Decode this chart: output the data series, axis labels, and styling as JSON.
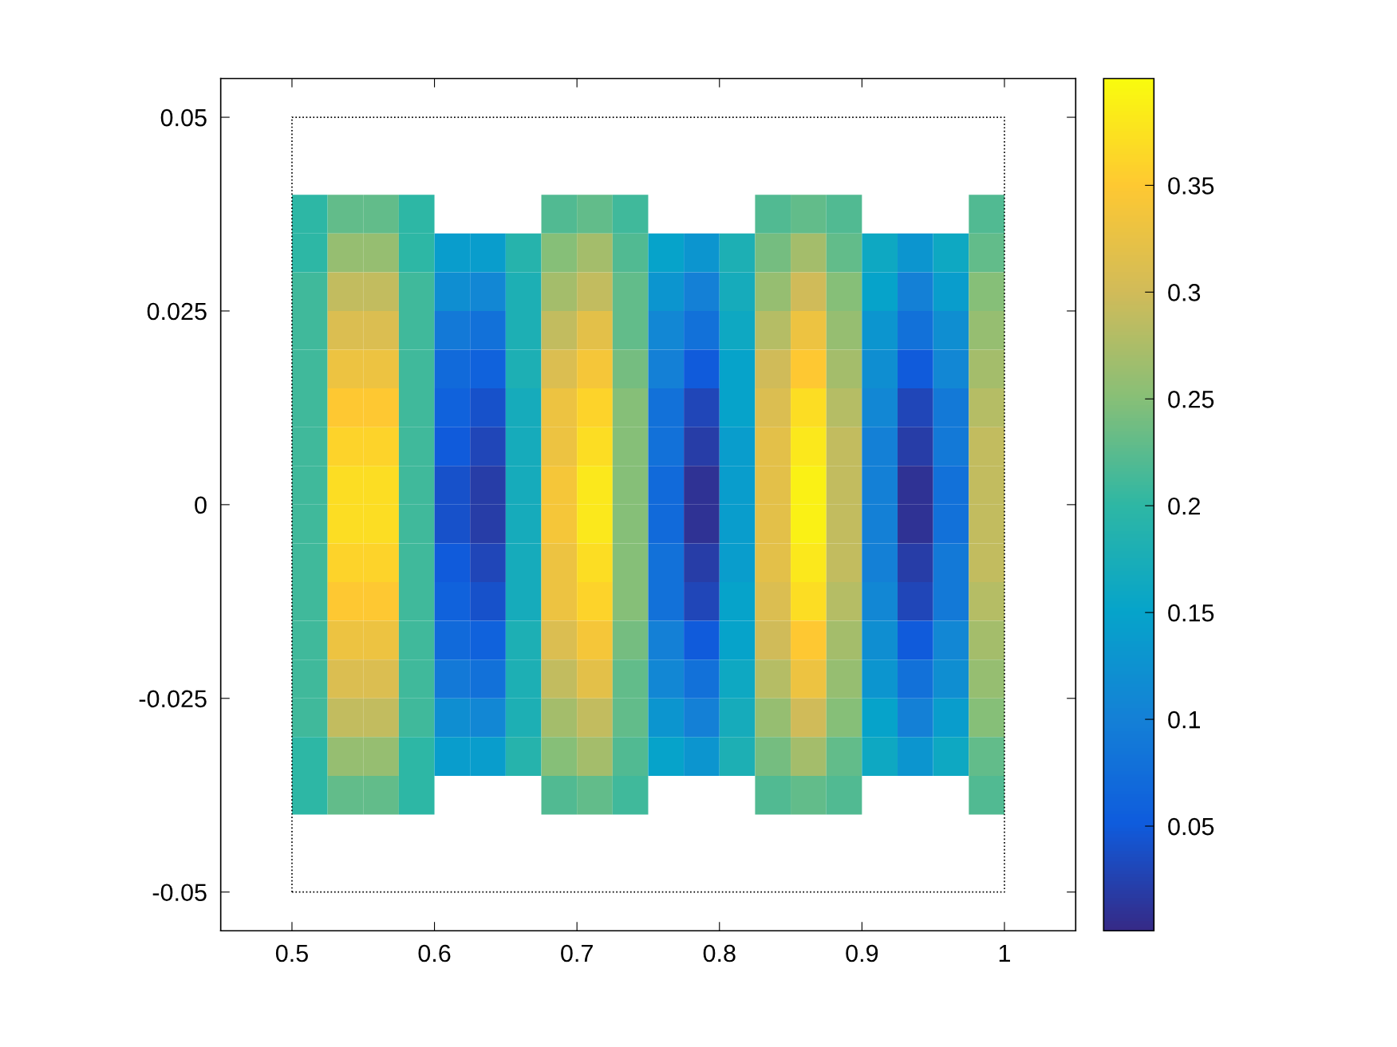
{
  "chart_data": {
    "type": "heatmap",
    "x": [
      0.5125,
      0.5375,
      0.5625,
      0.5875,
      0.6125,
      0.6375,
      0.6625,
      0.6875,
      0.7125,
      0.7375,
      0.7625,
      0.7875,
      0.8125,
      0.8375,
      0.8625,
      0.8875,
      0.9125,
      0.9375,
      0.9625,
      0.9875
    ],
    "y": [
      0.0375,
      0.0325,
      0.0275,
      0.0225,
      0.0175,
      0.0125,
      0.0075,
      0.0025,
      -0.0025,
      -0.0075,
      -0.0125,
      -0.0175,
      -0.0225,
      -0.0275,
      -0.0325,
      -0.0375
    ],
    "cells": [
      [
        0.2,
        0.23,
        0.23,
        0.2,
        null,
        null,
        null,
        0.22,
        0.23,
        0.21,
        null,
        null,
        null,
        0.22,
        0.23,
        0.22,
        null,
        null,
        null,
        0.22
      ],
      [
        0.2,
        0.26,
        0.26,
        0.2,
        0.14,
        0.14,
        0.19,
        0.25,
        0.27,
        0.22,
        0.15,
        0.13,
        0.18,
        0.24,
        0.27,
        0.23,
        0.16,
        0.13,
        0.16,
        0.23
      ],
      [
        0.21,
        0.29,
        0.29,
        0.21,
        0.12,
        0.11,
        0.18,
        0.27,
        0.29,
        0.23,
        0.13,
        0.1,
        0.17,
        0.26,
        0.3,
        0.25,
        0.15,
        0.1,
        0.14,
        0.25
      ],
      [
        0.21,
        0.31,
        0.31,
        0.21,
        0.09,
        0.08,
        0.18,
        0.29,
        0.32,
        0.23,
        0.11,
        0.08,
        0.16,
        0.28,
        0.33,
        0.26,
        0.13,
        0.08,
        0.12,
        0.26
      ],
      [
        0.21,
        0.33,
        0.33,
        0.21,
        0.07,
        0.06,
        0.18,
        0.31,
        0.34,
        0.24,
        0.1,
        0.05,
        0.15,
        0.3,
        0.35,
        0.27,
        0.12,
        0.05,
        0.11,
        0.27
      ],
      [
        0.21,
        0.35,
        0.35,
        0.21,
        0.06,
        0.04,
        0.17,
        0.33,
        0.36,
        0.25,
        0.08,
        0.03,
        0.15,
        0.31,
        0.37,
        0.28,
        0.11,
        0.03,
        0.09,
        0.28
      ],
      [
        0.21,
        0.36,
        0.36,
        0.21,
        0.05,
        0.03,
        0.17,
        0.33,
        0.37,
        0.25,
        0.08,
        0.02,
        0.14,
        0.32,
        0.38,
        0.29,
        0.1,
        0.02,
        0.09,
        0.29
      ],
      [
        0.21,
        0.37,
        0.37,
        0.21,
        0.04,
        0.02,
        0.17,
        0.34,
        0.38,
        0.25,
        0.07,
        0.01,
        0.14,
        0.32,
        0.39,
        0.29,
        0.1,
        0.01,
        0.08,
        0.29
      ],
      [
        0.21,
        0.37,
        0.37,
        0.21,
        0.04,
        0.02,
        0.17,
        0.34,
        0.38,
        0.25,
        0.07,
        0.01,
        0.14,
        0.32,
        0.39,
        0.29,
        0.1,
        0.01,
        0.08,
        0.29
      ],
      [
        0.21,
        0.36,
        0.36,
        0.21,
        0.05,
        0.03,
        0.17,
        0.33,
        0.37,
        0.25,
        0.08,
        0.02,
        0.14,
        0.32,
        0.38,
        0.29,
        0.1,
        0.02,
        0.09,
        0.29
      ],
      [
        0.21,
        0.35,
        0.35,
        0.21,
        0.06,
        0.04,
        0.17,
        0.33,
        0.36,
        0.25,
        0.08,
        0.03,
        0.15,
        0.31,
        0.37,
        0.28,
        0.11,
        0.03,
        0.09,
        0.28
      ],
      [
        0.21,
        0.33,
        0.33,
        0.21,
        0.07,
        0.06,
        0.18,
        0.31,
        0.34,
        0.24,
        0.1,
        0.05,
        0.15,
        0.3,
        0.35,
        0.27,
        0.12,
        0.05,
        0.11,
        0.27
      ],
      [
        0.21,
        0.31,
        0.31,
        0.21,
        0.09,
        0.08,
        0.18,
        0.29,
        0.32,
        0.23,
        0.11,
        0.08,
        0.16,
        0.28,
        0.33,
        0.26,
        0.13,
        0.08,
        0.12,
        0.26
      ],
      [
        0.21,
        0.29,
        0.29,
        0.21,
        0.12,
        0.11,
        0.18,
        0.27,
        0.29,
        0.23,
        0.13,
        0.1,
        0.17,
        0.26,
        0.3,
        0.25,
        0.15,
        0.1,
        0.14,
        0.25
      ],
      [
        0.2,
        0.26,
        0.26,
        0.2,
        0.14,
        0.14,
        0.19,
        0.25,
        0.27,
        0.22,
        0.15,
        0.13,
        0.18,
        0.24,
        0.27,
        0.23,
        0.16,
        0.13,
        0.16,
        0.23
      ],
      [
        0.2,
        0.23,
        0.23,
        0.2,
        null,
        null,
        null,
        0.22,
        0.23,
        0.21,
        null,
        null,
        null,
        0.22,
        0.23,
        0.22,
        null,
        null,
        null,
        0.22
      ]
    ],
    "colors": [
      "#352a87",
      "#0f5cdd",
      "#1481d6",
      "#06a4ca",
      "#2eb7a4",
      "#87bf77",
      "#d1bb59",
      "#fec832",
      "#f9fb0e"
    ],
    "clim": [
      0.001,
      0.4
    ],
    "cticks": [
      0.05,
      0.1,
      0.15,
      0.2,
      0.25,
      0.3,
      0.35
    ],
    "xlim": [
      0.45,
      1.05
    ],
    "xticks": [
      0.5,
      0.6,
      0.7,
      0.8,
      0.9,
      1
    ],
    "ylim": [
      -0.055,
      0.055
    ],
    "yticks": [
      -0.05,
      -0.025,
      0,
      0.025,
      0.05
    ]
  }
}
